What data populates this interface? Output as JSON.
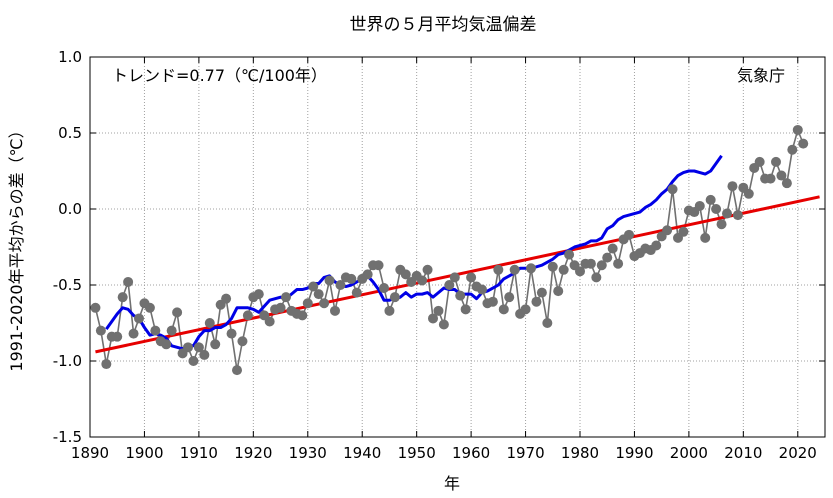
{
  "chart_data": {
    "type": "line",
    "title": "世界の５月平均気温偏差",
    "xlabel": "年",
    "ylabel": "1991-2020年平均からの差（℃）",
    "xlim": [
      1890,
      2025
    ],
    "ylim": [
      -1.5,
      1.0
    ],
    "xticks": [
      1890,
      1900,
      1910,
      1920,
      1930,
      1940,
      1950,
      1960,
      1970,
      1980,
      1990,
      2000,
      2010,
      2020
    ],
    "yticks": [
      -1.5,
      -1.0,
      -0.5,
      0.0,
      0.5,
      1.0
    ],
    "ytick_labels": [
      "-1.5",
      "-1.0",
      "-0.5",
      "0.0",
      "0.5",
      "1.0"
    ],
    "grid": true,
    "annotations": {
      "trend": "トレンド=0.77（℃/100年）",
      "source": "気象庁"
    },
    "series": [
      {
        "role": "annual",
        "color": "#707070",
        "x_start": 1891,
        "values": [
          -0.65,
          -0.8,
          -1.02,
          -0.84,
          -0.84,
          -0.58,
          -0.48,
          -0.82,
          -0.72,
          -0.62,
          -0.65,
          -0.8,
          -0.87,
          -0.89,
          -0.8,
          -0.68,
          -0.95,
          -0.91,
          -1.0,
          -0.91,
          -0.96,
          -0.75,
          -0.89,
          -0.63,
          -0.59,
          -0.82,
          -1.06,
          -0.87,
          -0.7,
          -0.58,
          -0.56,
          -0.7,
          -0.74,
          -0.66,
          -0.65,
          -0.58,
          -0.67,
          -0.69,
          -0.7,
          -0.62,
          -0.51,
          -0.56,
          -0.62,
          -0.47,
          -0.67,
          -0.5,
          -0.45,
          -0.46,
          -0.55,
          -0.46,
          -0.43,
          -0.37,
          -0.37,
          -0.52,
          -0.67,
          -0.58,
          -0.4,
          -0.43,
          -0.48,
          -0.44,
          -0.47,
          -0.4,
          -0.72,
          -0.67,
          -0.76,
          -0.5,
          -0.45,
          -0.57,
          -0.66,
          -0.45,
          -0.51,
          -0.53,
          -0.62,
          -0.61,
          -0.4,
          -0.66,
          -0.58,
          -0.4,
          -0.69,
          -0.66,
          -0.39,
          -0.61,
          -0.55,
          -0.75,
          -0.38,
          -0.54,
          -0.4,
          -0.3,
          -0.37,
          -0.41,
          -0.36,
          -0.36,
          -0.45,
          -0.37,
          -0.32,
          -0.26,
          -0.36,
          -0.2,
          -0.17,
          -0.31,
          -0.29,
          -0.26,
          -0.27,
          -0.24,
          -0.18,
          -0.14,
          0.13,
          -0.19,
          -0.15,
          -0.01,
          -0.02,
          0.02,
          -0.19,
          0.06,
          0.0,
          -0.1,
          -0.03,
          0.15,
          -0.04,
          0.14,
          0.1,
          0.27,
          0.31,
          0.2,
          0.2,
          0.31,
          0.22,
          0.17,
          0.39,
          0.52,
          0.43
        ]
      },
      {
        "role": "5-year running mean",
        "color": "#0000e6",
        "x_start": 1893,
        "values": [
          -0.79,
          -0.74,
          -0.69,
          -0.65,
          -0.66,
          -0.7,
          -0.72,
          -0.78,
          -0.83,
          -0.82,
          -0.83,
          -0.85,
          -0.9,
          -0.91,
          -0.92,
          -0.9,
          -0.9,
          -0.84,
          -0.8,
          -0.8,
          -0.78,
          -0.78,
          -0.76,
          -0.72,
          -0.65,
          -0.65,
          -0.65,
          -0.66,
          -0.68,
          -0.64,
          -0.6,
          -0.59,
          -0.58,
          -0.59,
          -0.56,
          -0.53,
          -0.53,
          -0.52,
          -0.49,
          -0.49,
          -0.45,
          -0.44,
          -0.48,
          -0.5,
          -0.51,
          -0.5,
          -0.48,
          -0.46,
          -0.44,
          -0.48,
          -0.53,
          -0.6,
          -0.6,
          -0.59,
          -0.58,
          -0.55,
          -0.58,
          -0.56,
          -0.56,
          -0.55,
          -0.58,
          -0.55,
          -0.52,
          -0.53,
          -0.53,
          -0.56,
          -0.56,
          -0.56,
          -0.59,
          -0.55,
          -0.54,
          -0.52,
          -0.5,
          -0.46,
          -0.44,
          -0.42,
          -0.39,
          -0.39,
          -0.39,
          -0.38,
          -0.37,
          -0.35,
          -0.33,
          -0.3,
          -0.29,
          -0.27,
          -0.25,
          -0.24,
          -0.23,
          -0.21,
          -0.21,
          -0.19,
          -0.13,
          -0.11,
          -0.07,
          -0.05,
          -0.04,
          -0.03,
          -0.02,
          0.01,
          0.03,
          0.06,
          0.1,
          0.13,
          0.18,
          0.22,
          0.24,
          0.25,
          0.25,
          0.24,
          0.23,
          0.25,
          0.3,
          0.35
        ]
      },
      {
        "role": "trend",
        "color": "#e60000",
        "x": [
          1891,
          2024
        ],
        "values": [
          -0.94,
          0.08
        ]
      }
    ]
  }
}
